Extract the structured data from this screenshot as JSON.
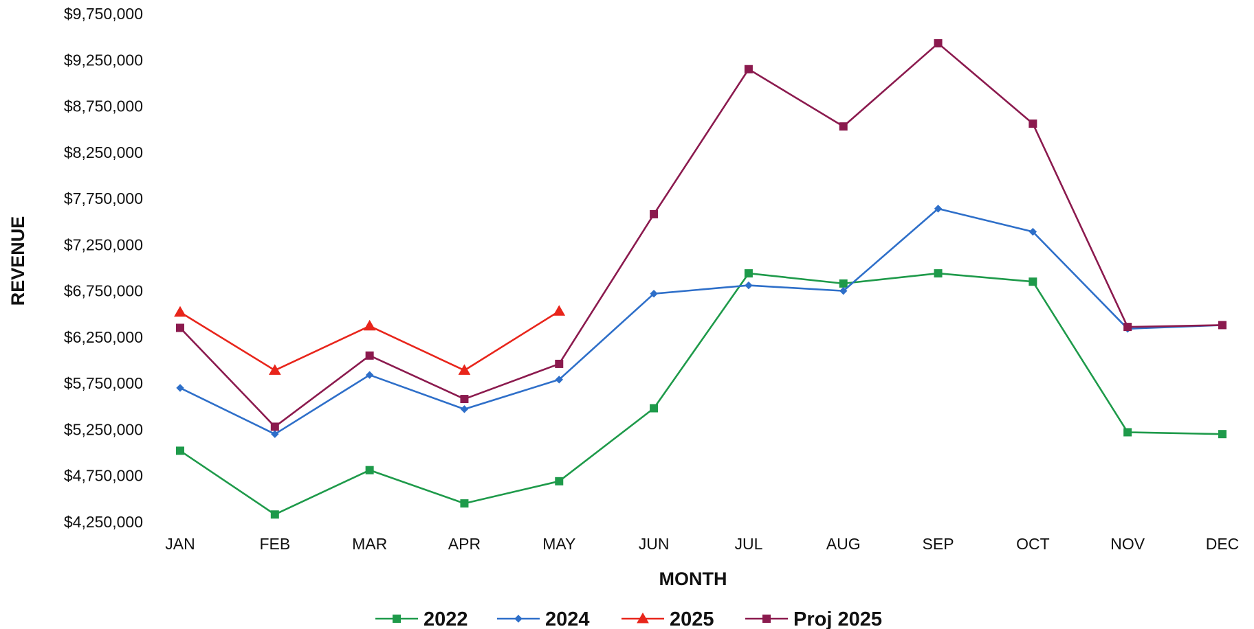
{
  "chart_data": {
    "type": "line",
    "title": "",
    "xlabel": "MONTH",
    "ylabel": "REVENUE",
    "categories": [
      "JAN",
      "FEB",
      "MAR",
      "APR",
      "MAY",
      "JUN",
      "JUL",
      "AUG",
      "SEP",
      "OCT",
      "NOV",
      "DEC"
    ],
    "ylim": [
      4250000,
      9750000
    ],
    "yticks": [
      4250000,
      4750000,
      5250000,
      5750000,
      6250000,
      6750000,
      7250000,
      7750000,
      8250000,
      8750000,
      9250000,
      9750000
    ],
    "ytick_labels": [
      "$4,250,000",
      "$4,750,000",
      "$5,250,000",
      "$5,750,000",
      "$6,250,000",
      "$6,750,000",
      "$7,250,000",
      "$7,750,000",
      "$8,250,000",
      "$8,750,000",
      "$9,250,000",
      "$9,750,000"
    ],
    "grid": false,
    "legend_position": "bottom",
    "series": [
      {
        "name": "2022",
        "color": "#1e9a4a",
        "marker": "square",
        "values": [
          5020000,
          4330000,
          4810000,
          4450000,
          4690000,
          5480000,
          6940000,
          6830000,
          6940000,
          6850000,
          5220000,
          5200000
        ]
      },
      {
        "name": "2024",
        "color": "#2e6fc9",
        "marker": "diamond",
        "values": [
          5700000,
          5200000,
          5840000,
          5470000,
          5790000,
          6720000,
          6810000,
          6750000,
          7640000,
          7390000,
          6340000,
          6380000
        ]
      },
      {
        "name": "2025",
        "color": "#e8251b",
        "marker": "triangle",
        "values": [
          6520000,
          5890000,
          6370000,
          5890000,
          6530000,
          null,
          null,
          null,
          null,
          null,
          null,
          null
        ]
      },
      {
        "name": "Proj 2025",
        "color": "#8b1a4e",
        "marker": "square",
        "values": [
          6350000,
          5280000,
          6050000,
          5580000,
          5960000,
          7580000,
          9150000,
          8530000,
          9430000,
          8560000,
          6360000,
          6380000
        ]
      }
    ]
  }
}
